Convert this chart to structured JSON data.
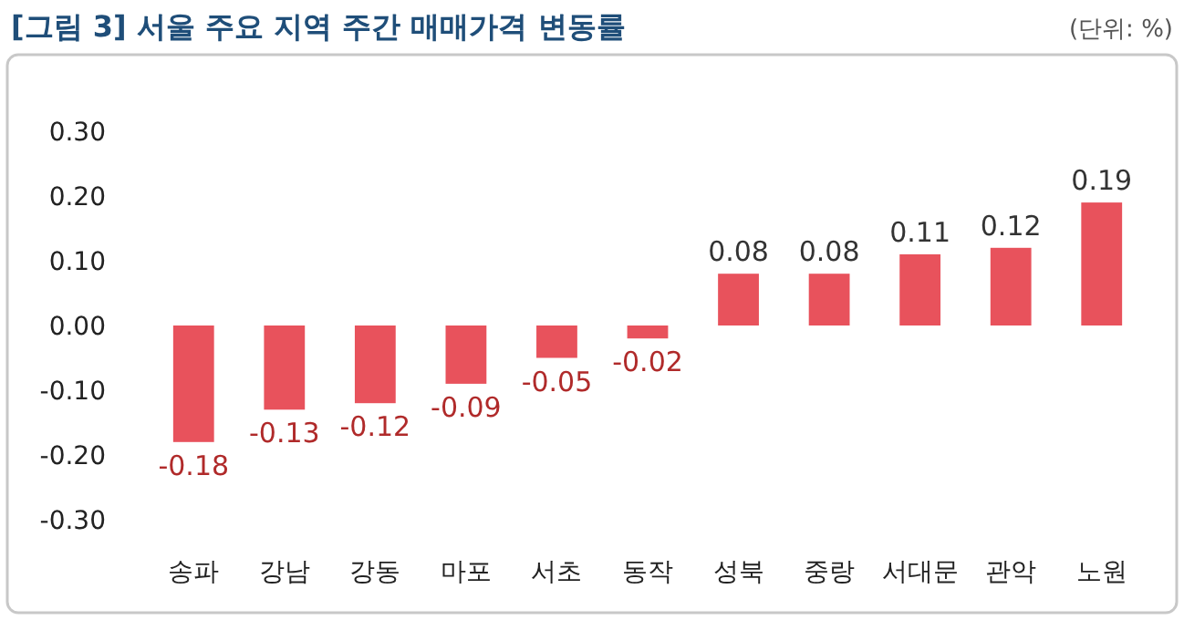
{
  "chart_data": {
    "type": "bar",
    "title": "[그림 3] 서울 주요 지역 주간 매매가격 변동률",
    "annotations": [
      "(단위: %)"
    ],
    "categories": [
      "송파",
      "강남",
      "강동",
      "마포",
      "서초",
      "동작",
      "성북",
      "중랑",
      "서대문",
      "관악",
      "노원"
    ],
    "values": [
      -0.18,
      -0.13,
      -0.12,
      -0.09,
      -0.05,
      -0.02,
      0.08,
      0.08,
      0.11,
      0.12,
      0.19
    ],
    "color": "#e8525c",
    "ylim": [
      -0.3,
      0.3
    ],
    "yticks": [
      {
        "value": 0.3,
        "label": "0.30"
      },
      {
        "value": 0.2,
        "label": "0.20"
      },
      {
        "value": 0.1,
        "label": "0.10"
      },
      {
        "value": 0,
        "label": "0.00"
      },
      {
        "value": -0.1,
        "label": "-0.10"
      },
      {
        "value": -0.2,
        "label": "-0.20"
      },
      {
        "value": -0.3,
        "label": "-0.30"
      }
    ],
    "data_labels": true,
    "grid": false
  }
}
